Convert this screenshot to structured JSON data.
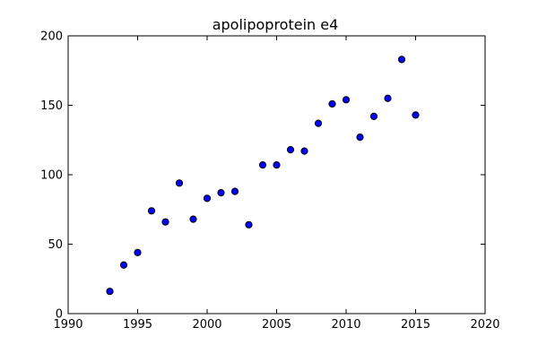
{
  "chart_data": {
    "type": "scatter",
    "title": "apolipoprotein e4",
    "xlabel": "",
    "ylabel": "",
    "xlim": [
      1990,
      2020
    ],
    "ylim": [
      0,
      200
    ],
    "x_ticks": [
      1990,
      1995,
      2000,
      2005,
      2010,
      2015,
      2020
    ],
    "y_ticks": [
      0,
      50,
      100,
      150,
      200
    ],
    "grid": false,
    "legend": "none",
    "marker_color": "#0000ff",
    "marker_edge_color": "#000000",
    "series": [
      {
        "x": [
          1993,
          1994,
          1995,
          1996,
          1997,
          1998,
          1999,
          2000,
          2001,
          2002,
          2003,
          2004,
          2005,
          2006,
          2007,
          2008,
          2009,
          2010,
          2011,
          2012,
          2013,
          2014,
          2015
        ],
        "y": [
          16,
          35,
          44,
          74,
          66,
          94,
          68,
          83,
          87,
          88,
          64,
          107,
          107,
          118,
          117,
          137,
          151,
          154,
          127,
          142,
          155,
          183,
          143
        ]
      }
    ]
  }
}
